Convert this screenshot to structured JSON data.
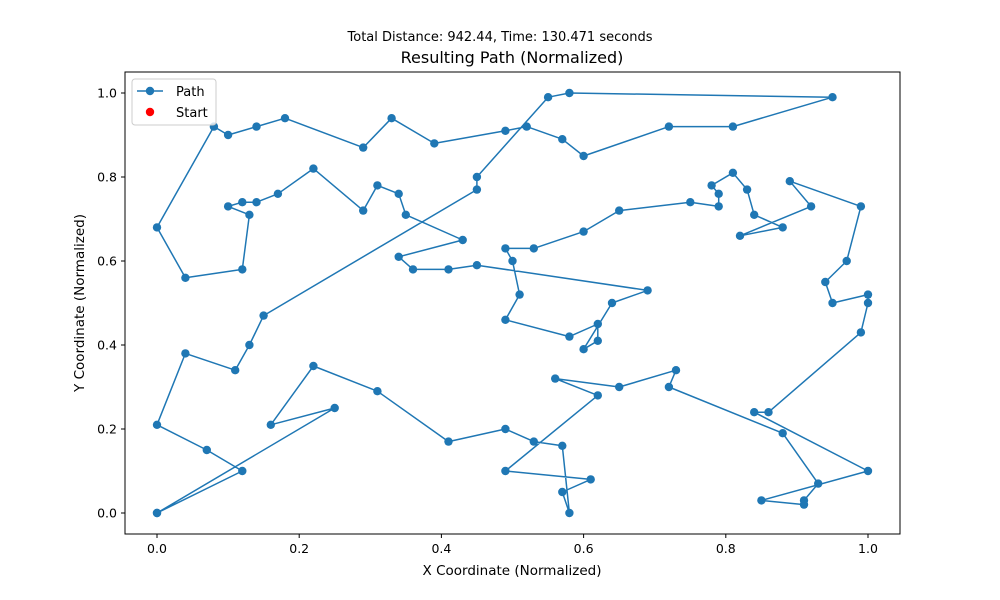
{
  "chart_data": {
    "type": "line",
    "suptitle": "Total Distance: 942.44, Time: 130.471 seconds",
    "title": "Resulting Path (Normalized)",
    "xlabel": "X Coordinate (Normalized)",
    "ylabel": "Y Coordinate (Normalized)",
    "xlim": [
      -0.045,
      1.045
    ],
    "ylim": [
      -0.05,
      1.05
    ],
    "xticks": [
      0.0,
      0.2,
      0.4,
      0.6,
      0.8,
      1.0
    ],
    "yticks": [
      0.0,
      0.2,
      0.4,
      0.6,
      0.8,
      1.0
    ],
    "xtick_labels": [
      "0.0",
      "0.2",
      "0.4",
      "0.6",
      "0.8",
      "1.0"
    ],
    "ytick_labels": [
      "0.0",
      "0.2",
      "0.4",
      "0.6",
      "0.8",
      "1.0"
    ],
    "grid": false,
    "legend_position": "top-left",
    "legend": [
      {
        "label": "Path",
        "marker": "line-circle",
        "color": "#1f77b4"
      },
      {
        "label": "Start",
        "marker": "dot",
        "color": "#ff0000"
      }
    ],
    "series": [
      {
        "name": "Path",
        "color": "#1f77b4",
        "points": [
          [
            0.0,
            0.0
          ],
          [
            0.25,
            0.25
          ],
          [
            0.16,
            0.21
          ],
          [
            0.22,
            0.35
          ],
          [
            0.31,
            0.29
          ],
          [
            0.41,
            0.17
          ],
          [
            0.49,
            0.2
          ],
          [
            0.53,
            0.17
          ],
          [
            0.57,
            0.16
          ],
          [
            0.58,
            0.0
          ],
          [
            0.57,
            0.05
          ],
          [
            0.61,
            0.08
          ],
          [
            0.49,
            0.1
          ],
          [
            0.62,
            0.28
          ],
          [
            0.56,
            0.32
          ],
          [
            0.65,
            0.3
          ],
          [
            0.73,
            0.34
          ],
          [
            0.72,
            0.3
          ],
          [
            0.88,
            0.19
          ],
          [
            0.93,
            0.07
          ],
          [
            0.91,
            0.03
          ],
          [
            0.91,
            0.02
          ],
          [
            0.85,
            0.03
          ],
          [
            1.0,
            0.1
          ],
          [
            0.84,
            0.24
          ],
          [
            0.86,
            0.24
          ],
          [
            0.99,
            0.43
          ],
          [
            1.0,
            0.5
          ],
          [
            1.0,
            0.52
          ],
          [
            0.95,
            0.5
          ],
          [
            0.94,
            0.55
          ],
          [
            0.97,
            0.6
          ],
          [
            0.99,
            0.73
          ],
          [
            0.89,
            0.79
          ],
          [
            0.92,
            0.73
          ],
          [
            0.82,
            0.66
          ],
          [
            0.88,
            0.68
          ],
          [
            0.84,
            0.71
          ],
          [
            0.83,
            0.77
          ],
          [
            0.81,
            0.81
          ],
          [
            0.78,
            0.78
          ],
          [
            0.79,
            0.76
          ],
          [
            0.79,
            0.73
          ],
          [
            0.75,
            0.74
          ],
          [
            0.65,
            0.72
          ],
          [
            0.6,
            0.67
          ],
          [
            0.53,
            0.63
          ],
          [
            0.49,
            0.63
          ],
          [
            0.5,
            0.6
          ],
          [
            0.51,
            0.52
          ],
          [
            0.49,
            0.46
          ],
          [
            0.58,
            0.42
          ],
          [
            0.62,
            0.45
          ],
          [
            0.62,
            0.41
          ],
          [
            0.6,
            0.39
          ],
          [
            0.64,
            0.5
          ],
          [
            0.69,
            0.53
          ],
          [
            0.45,
            0.59
          ],
          [
            0.41,
            0.58
          ],
          [
            0.36,
            0.58
          ],
          [
            0.34,
            0.61
          ],
          [
            0.43,
            0.65
          ],
          [
            0.35,
            0.71
          ],
          [
            0.34,
            0.76
          ],
          [
            0.31,
            0.78
          ],
          [
            0.29,
            0.72
          ],
          [
            0.22,
            0.82
          ],
          [
            0.17,
            0.76
          ],
          [
            0.14,
            0.74
          ],
          [
            0.12,
            0.74
          ],
          [
            0.1,
            0.73
          ],
          [
            0.13,
            0.71
          ],
          [
            0.12,
            0.58
          ],
          [
            0.04,
            0.56
          ],
          [
            0.0,
            0.68
          ],
          [
            0.08,
            0.92
          ],
          [
            0.1,
            0.9
          ],
          [
            0.14,
            0.92
          ],
          [
            0.18,
            0.94
          ],
          [
            0.29,
            0.87
          ],
          [
            0.33,
            0.94
          ],
          [
            0.39,
            0.88
          ],
          [
            0.49,
            0.91
          ],
          [
            0.52,
            0.92
          ],
          [
            0.57,
            0.89
          ],
          [
            0.6,
            0.85
          ],
          [
            0.72,
            0.92
          ],
          [
            0.81,
            0.92
          ],
          [
            0.95,
            0.99
          ],
          [
            0.58,
            1.0
          ],
          [
            0.55,
            0.99
          ],
          [
            0.45,
            0.8
          ],
          [
            0.45,
            0.77
          ],
          [
            0.15,
            0.47
          ],
          [
            0.13,
            0.4
          ],
          [
            0.11,
            0.34
          ],
          [
            0.04,
            0.38
          ],
          [
            0.0,
            0.21
          ],
          [
            0.07,
            0.15
          ],
          [
            0.12,
            0.1
          ],
          [
            0.0,
            0.0
          ]
        ]
      }
    ],
    "start_point": [
      0.0,
      0.0
    ]
  }
}
